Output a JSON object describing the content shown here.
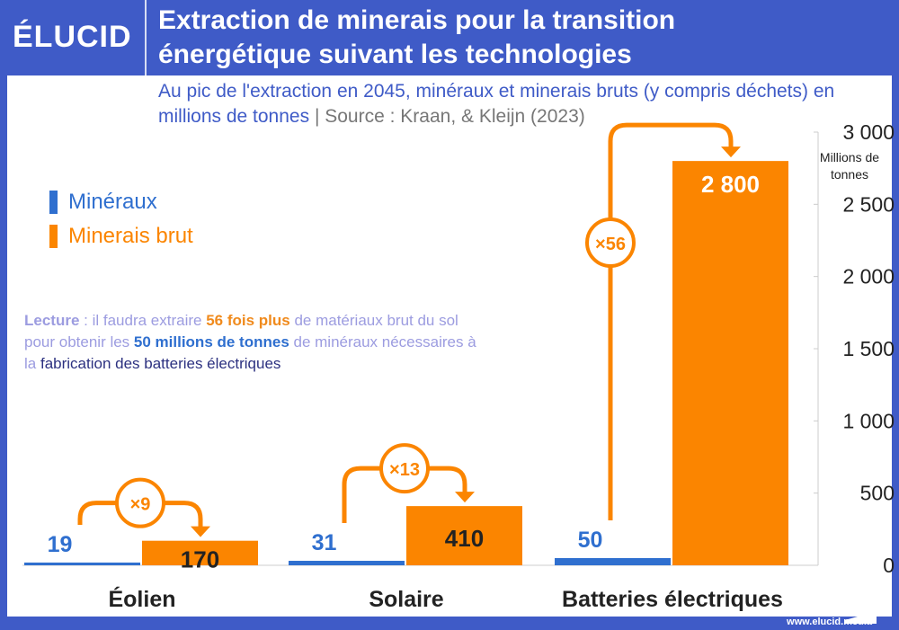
{
  "header": {
    "logo": "ÉLUCID",
    "title_line1": "Extraction de minerais pour la transition",
    "title_line2": "énergétique suivant les technologies"
  },
  "subtitle": {
    "text": "Au pic de l'extraction en 2045, minéraux et minerais bruts (y compris déchets) en millions de tonnes",
    "separator": "|",
    "source": "Source : Kraan, & Kleijn (2023)"
  },
  "lecture": {
    "p1": "Lecture",
    "p2": " : il faudra extraire ",
    "p3": "56 fois plus",
    "p4": " de matériaux brut du sol pour obtenir les ",
    "p5": "50 millions de tonnes",
    "p6": " de minéraux nécessaires à la ",
    "p7": "fabrication des batteries électriques"
  },
  "footer": "www.elucid.media",
  "colors": {
    "frame": "#3f5bc7",
    "mineraux": "#2f6fcf",
    "minerais_brut": "#fb8500"
  },
  "chart_data": {
    "type": "bar",
    "categories": [
      "Éolien",
      "Solaire",
      "Batteries électriques"
    ],
    "series": [
      {
        "name": "Minéraux",
        "values": [
          19,
          31,
          50
        ],
        "labels": [
          "19",
          "31",
          "50"
        ]
      },
      {
        "name": "Minerais brut",
        "values": [
          170,
          410,
          2800
        ],
        "labels": [
          "170",
          "410",
          "2 800"
        ]
      }
    ],
    "multipliers": [
      "×9",
      "×13",
      "×56"
    ],
    "ylabel": "Millions de tonnes",
    "ylim": [
      0,
      3000
    ],
    "yticks": [
      0,
      500,
      1000,
      1500,
      2000,
      2500,
      3000
    ],
    "ytick_labels": [
      "0",
      "500",
      "1 000",
      "1 500",
      "2 000",
      "2 500",
      "3 000"
    ],
    "grid": false,
    "legend": "left"
  }
}
